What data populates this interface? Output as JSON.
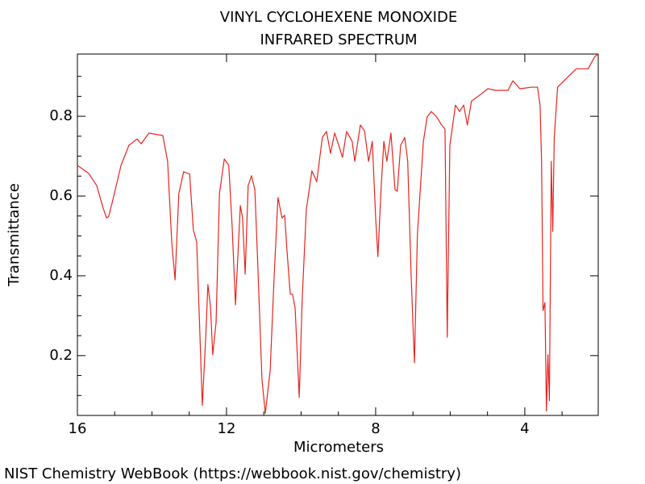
{
  "chart_data": {
    "type": "line",
    "title": [
      "VINYL CYCLOHEXENE MONOXIDE",
      "INFRARED SPECTRUM"
    ],
    "xlabel": "Micrometers",
    "ylabel": "Transmittance",
    "source": "NIST Chemistry WebBook (https://webbook.nist.gov/chemistry)",
    "color": "#e8231e",
    "xlim": [
      16,
      2.03
    ],
    "ylim": [
      0.05,
      0.956
    ],
    "xticks": [
      16,
      12,
      8,
      4
    ],
    "yticks": [
      0.2,
      0.4,
      0.6,
      0.8
    ],
    "x_minor_ticks": [
      15,
      14,
      13,
      11,
      10,
      9,
      7,
      6,
      5,
      3
    ],
    "y_minor_ticks": [
      0.1,
      0.15,
      0.25,
      0.3,
      0.35,
      0.45,
      0.5,
      0.55,
      0.65,
      0.7,
      0.75,
      0.85,
      0.9
    ],
    "x": [
      16.0,
      15.7,
      15.48,
      15.31,
      15.22,
      15.16,
      15.05,
      14.83,
      14.62,
      14.4,
      14.29,
      14.08,
      13.86,
      13.71,
      13.58,
      13.47,
      13.38,
      13.28,
      13.15,
      12.99,
      12.89,
      12.8,
      12.71,
      12.65,
      12.56,
      12.5,
      12.43,
      12.37,
      12.28,
      12.19,
      12.06,
      11.94,
      11.85,
      11.76,
      11.63,
      11.57,
      11.5,
      11.42,
      11.33,
      11.24,
      11.16,
      11.05,
      10.96,
      10.83,
      10.72,
      10.62,
      10.51,
      10.44,
      10.38,
      10.29,
      10.23,
      10.16,
      10.05,
      9.97,
      9.86,
      9.71,
      9.58,
      9.43,
      9.32,
      9.21,
      9.1,
      8.99,
      8.89,
      8.78,
      8.63,
      8.56,
      8.41,
      8.3,
      8.19,
      8.09,
      8.0,
      7.94,
      7.85,
      7.78,
      7.7,
      7.59,
      7.48,
      7.42,
      7.33,
      7.22,
      7.14,
      7.05,
      6.96,
      6.88,
      6.72,
      6.62,
      6.51,
      6.36,
      6.23,
      6.14,
      6.08,
      6.01,
      5.86,
      5.75,
      5.64,
      5.54,
      5.43,
      5.21,
      4.99,
      4.78,
      4.45,
      4.32,
      4.13,
      3.81,
      3.66,
      3.59,
      3.55,
      3.51,
      3.46,
      3.42,
      3.38,
      3.34,
      3.29,
      3.25,
      3.21,
      3.12,
      2.84,
      2.62,
      2.3,
      2.12,
      2.03
    ],
    "values": [
      0.677,
      0.657,
      0.626,
      0.57,
      0.545,
      0.549,
      0.59,
      0.677,
      0.727,
      0.743,
      0.731,
      0.758,
      0.754,
      0.752,
      0.687,
      0.485,
      0.39,
      0.606,
      0.661,
      0.655,
      0.515,
      0.485,
      0.242,
      0.075,
      0.242,
      0.378,
      0.323,
      0.202,
      0.283,
      0.606,
      0.693,
      0.677,
      0.525,
      0.327,
      0.576,
      0.545,
      0.404,
      0.626,
      0.651,
      0.616,
      0.424,
      0.141,
      0.055,
      0.162,
      0.404,
      0.596,
      0.545,
      0.552,
      0.465,
      0.354,
      0.354,
      0.319,
      0.095,
      0.343,
      0.566,
      0.663,
      0.636,
      0.747,
      0.762,
      0.707,
      0.758,
      0.727,
      0.697,
      0.762,
      0.737,
      0.687,
      0.778,
      0.764,
      0.687,
      0.737,
      0.545,
      0.448,
      0.626,
      0.737,
      0.687,
      0.758,
      0.616,
      0.612,
      0.727,
      0.747,
      0.687,
      0.404,
      0.182,
      0.505,
      0.737,
      0.798,
      0.812,
      0.798,
      0.778,
      0.768,
      0.246,
      0.727,
      0.828,
      0.812,
      0.828,
      0.778,
      0.838,
      0.853,
      0.869,
      0.865,
      0.865,
      0.889,
      0.869,
      0.873,
      0.873,
      0.828,
      0.687,
      0.313,
      0.333,
      0.061,
      0.202,
      0.087,
      0.687,
      0.511,
      0.747,
      0.873,
      0.899,
      0.919,
      0.919,
      0.95,
      0.956
    ]
  }
}
